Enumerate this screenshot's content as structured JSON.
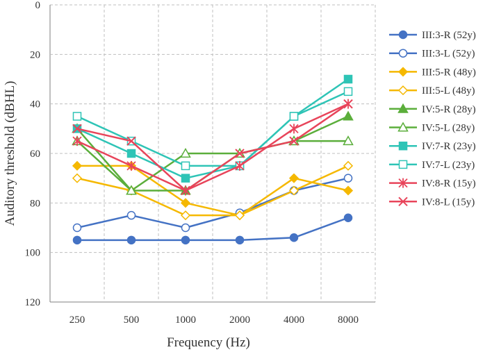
{
  "chart_data": {
    "type": "line",
    "title": "",
    "xlabel": "Frequency (Hz)",
    "ylabel": "Auditory threshold (dBHL)",
    "categories": [
      "250",
      "500",
      "1000",
      "2000",
      "4000",
      "8000"
    ],
    "ylim": [
      0,
      120
    ],
    "y_inverted": true,
    "yticks": [
      0,
      20,
      40,
      60,
      80,
      100,
      120
    ],
    "grid": true,
    "legend_position": "right",
    "series": [
      {
        "name": "III:3-R (52y)",
        "color": "#4472C4",
        "marker": "circle",
        "filled": true,
        "values": [
          95,
          95,
          95,
          95,
          94,
          86
        ]
      },
      {
        "name": "III:3-L (52y)",
        "color": "#4472C4",
        "marker": "circle",
        "filled": false,
        "values": [
          90,
          85,
          90,
          84,
          75,
          70
        ]
      },
      {
        "name": "III:5-R (48y)",
        "color": "#F5B800",
        "marker": "diamond",
        "filled": true,
        "values": [
          65,
          65,
          80,
          85,
          70,
          75
        ]
      },
      {
        "name": "III:5-L (48y)",
        "color": "#F5B800",
        "marker": "diamond",
        "filled": false,
        "values": [
          70,
          75,
          85,
          85,
          75,
          65
        ]
      },
      {
        "name": "IV:5-R (28y)",
        "color": "#5BAE3B",
        "marker": "triangle",
        "filled": true,
        "values": [
          50,
          75,
          75,
          60,
          55,
          45
        ]
      },
      {
        "name": "IV:5-L (28y)",
        "color": "#5BAE3B",
        "marker": "triangle",
        "filled": false,
        "values": [
          55,
          75,
          60,
          60,
          55,
          55
        ]
      },
      {
        "name": "IV:7-R (23y)",
        "color": "#2EC4B6",
        "marker": "square",
        "filled": true,
        "values": [
          50,
          60,
          70,
          65,
          45,
          30
        ]
      },
      {
        "name": "IV:7-L (23y)",
        "color": "#2EC4B6",
        "marker": "square",
        "filled": false,
        "values": [
          45,
          55,
          65,
          65,
          45,
          35
        ]
      },
      {
        "name": "IV:8-R (15y)",
        "color": "#E8445A",
        "marker": "asterisk",
        "filled": true,
        "values": [
          55,
          65,
          75,
          65,
          50,
          40
        ]
      },
      {
        "name": "IV:8-L (15y)",
        "color": "#E8445A",
        "marker": "cross",
        "filled": true,
        "values": [
          50,
          55,
          75,
          60,
          55,
          40
        ]
      }
    ]
  }
}
